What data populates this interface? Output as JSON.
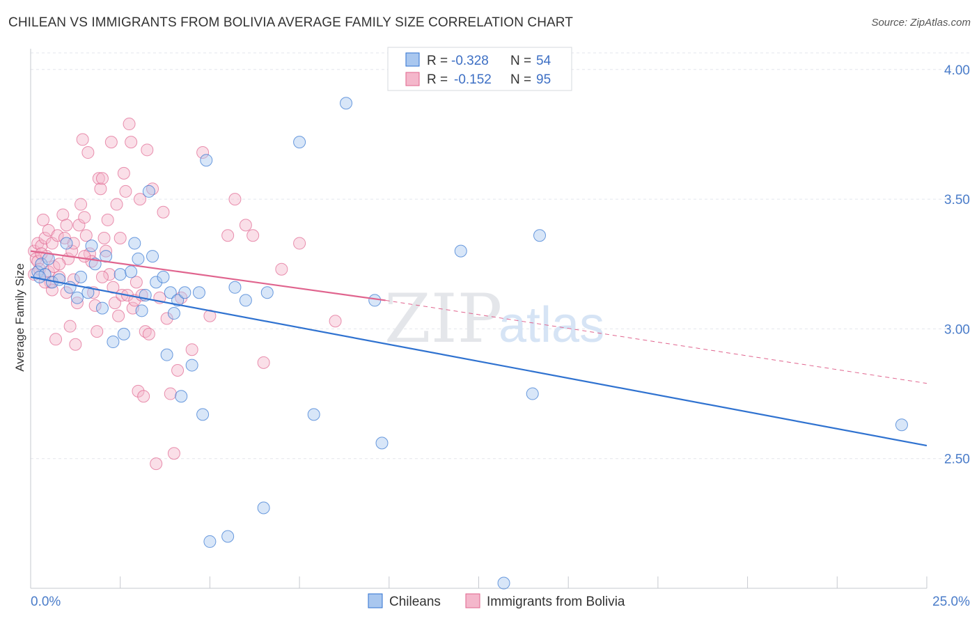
{
  "header": {
    "title": "CHILEAN VS IMMIGRANTS FROM BOLIVIA AVERAGE FAMILY SIZE CORRELATION CHART",
    "source": "Source: ZipAtlas.com"
  },
  "watermark": {
    "zip": "ZIP",
    "atlas": "atlas"
  },
  "colors": {
    "chileans_fill": "#a9c7ef",
    "chileans_line": "#2f72d0",
    "bolivia_fill": "#f4b7cb",
    "bolivia_line": "#e0648e",
    "grid": "#e3e6ec",
    "tick_label": "#4a7cc9"
  },
  "stats_legend": {
    "r_label": "R =",
    "n_label": "N =",
    "rows": [
      {
        "r": "-0.328",
        "n": "54"
      },
      {
        "r": "-0.152",
        "n": "95"
      }
    ]
  },
  "chart_data": {
    "type": "scatter",
    "title": "CHILEAN VS IMMIGRANTS FROM BOLIVIA AVERAGE FAMILY SIZE CORRELATION CHART",
    "xlabel": "",
    "ylabel": "Average Family Size",
    "xlim": [
      0,
      25
    ],
    "ylim": [
      2.0,
      4.08
    ],
    "x_tick_labels": [
      "0.0%",
      "25.0%"
    ],
    "y_ticks": [
      2.5,
      3.0,
      3.5,
      4.0
    ],
    "y_tick_labels": [
      "2.50",
      "3.00",
      "3.50",
      "4.00"
    ],
    "grid": true,
    "legend_position": "bottom-center",
    "series": [
      {
        "name": "Chileans",
        "trend": {
          "x": [
            0,
            25
          ],
          "y": [
            3.2,
            2.55
          ],
          "style": "solid"
        },
        "points": [
          [
            0.2,
            3.22
          ],
          [
            0.3,
            3.25
          ],
          [
            0.4,
            3.21
          ],
          [
            0.5,
            3.27
          ],
          [
            0.6,
            3.18
          ],
          [
            0.8,
            3.19
          ],
          [
            1.0,
            3.33
          ],
          [
            1.1,
            3.16
          ],
          [
            1.3,
            3.12
          ],
          [
            1.4,
            3.2
          ],
          [
            1.6,
            3.14
          ],
          [
            1.7,
            3.32
          ],
          [
            1.8,
            3.25
          ],
          [
            2.0,
            3.08
          ],
          [
            2.1,
            3.28
          ],
          [
            2.3,
            2.95
          ],
          [
            2.5,
            3.21
          ],
          [
            2.6,
            2.98
          ],
          [
            2.8,
            3.22
          ],
          [
            2.9,
            3.33
          ],
          [
            3.0,
            3.27
          ],
          [
            3.1,
            3.07
          ],
          [
            3.2,
            3.13
          ],
          [
            3.3,
            3.53
          ],
          [
            3.4,
            3.28
          ],
          [
            3.5,
            3.18
          ],
          [
            3.7,
            3.2
          ],
          [
            3.8,
            2.9
          ],
          [
            3.9,
            3.14
          ],
          [
            4.0,
            3.06
          ],
          [
            4.1,
            3.11
          ],
          [
            4.2,
            2.74
          ],
          [
            4.3,
            3.14
          ],
          [
            4.5,
            2.86
          ],
          [
            4.7,
            3.14
          ],
          [
            4.8,
            2.67
          ],
          [
            4.9,
            3.65
          ],
          [
            5.0,
            2.18
          ],
          [
            5.5,
            2.2
          ],
          [
            5.7,
            3.16
          ],
          [
            6.0,
            3.11
          ],
          [
            6.5,
            2.31
          ],
          [
            6.6,
            3.14
          ],
          [
            7.5,
            3.72
          ],
          [
            7.9,
            2.67
          ],
          [
            8.8,
            3.87
          ],
          [
            9.6,
            3.11
          ],
          [
            9.8,
            2.56
          ],
          [
            12.0,
            3.3
          ],
          [
            13.2,
            2.02
          ],
          [
            14.0,
            2.75
          ],
          [
            14.2,
            3.36
          ],
          [
            24.3,
            2.63
          ],
          [
            0.25,
            3.2
          ]
        ]
      },
      {
        "name": "Immigrants from Bolivia",
        "trend": {
          "x": [
            0,
            9.9
          ],
          "y": [
            3.3,
            3.11
          ],
          "style": "solid",
          "ext_x": [
            9.9,
            25
          ],
          "ext_y": [
            3.11,
            2.79
          ],
          "ext_style": "dashed"
        },
        "points": [
          [
            0.1,
            3.3
          ],
          [
            0.1,
            3.21
          ],
          [
            0.15,
            3.27
          ],
          [
            0.2,
            3.33
          ],
          [
            0.2,
            3.26
          ],
          [
            0.25,
            3.23
          ],
          [
            0.3,
            3.32
          ],
          [
            0.35,
            3.42
          ],
          [
            0.4,
            3.35
          ],
          [
            0.45,
            3.28
          ],
          [
            0.5,
            3.38
          ],
          [
            0.5,
            3.22
          ],
          [
            0.55,
            3.18
          ],
          [
            0.6,
            3.33
          ],
          [
            0.65,
            3.24
          ],
          [
            0.7,
            2.96
          ],
          [
            0.75,
            3.36
          ],
          [
            0.8,
            3.2
          ],
          [
            0.9,
            3.44
          ],
          [
            0.95,
            3.35
          ],
          [
            1.0,
            3.14
          ],
          [
            1.05,
            3.27
          ],
          [
            1.1,
            3.01
          ],
          [
            1.15,
            3.3
          ],
          [
            1.2,
            3.19
          ],
          [
            1.25,
            2.94
          ],
          [
            1.3,
            3.1
          ],
          [
            1.35,
            3.4
          ],
          [
            1.4,
            3.48
          ],
          [
            1.45,
            3.73
          ],
          [
            1.5,
            3.43
          ],
          [
            1.55,
            3.36
          ],
          [
            1.6,
            3.68
          ],
          [
            1.65,
            3.29
          ],
          [
            1.7,
            3.26
          ],
          [
            1.75,
            3.14
          ],
          [
            1.8,
            3.09
          ],
          [
            1.85,
            2.99
          ],
          [
            1.9,
            3.58
          ],
          [
            1.95,
            3.54
          ],
          [
            2.0,
            3.58
          ],
          [
            2.05,
            3.35
          ],
          [
            2.1,
            3.3
          ],
          [
            2.15,
            3.42
          ],
          [
            2.2,
            3.21
          ],
          [
            2.25,
            3.72
          ],
          [
            2.3,
            3.16
          ],
          [
            2.35,
            3.1
          ],
          [
            2.4,
            3.48
          ],
          [
            2.45,
            3.05
          ],
          [
            2.5,
            3.35
          ],
          [
            2.55,
            3.13
          ],
          [
            2.6,
            3.6
          ],
          [
            2.65,
            3.53
          ],
          [
            2.7,
            3.13
          ],
          [
            2.75,
            3.79
          ],
          [
            2.8,
            3.72
          ],
          [
            2.85,
            3.08
          ],
          [
            2.9,
            3.11
          ],
          [
            2.95,
            3.18
          ],
          [
            3.0,
            2.76
          ],
          [
            3.05,
            3.5
          ],
          [
            3.1,
            3.13
          ],
          [
            3.15,
            2.74
          ],
          [
            3.2,
            2.99
          ],
          [
            3.25,
            3.69
          ],
          [
            3.3,
            2.98
          ],
          [
            3.4,
            3.54
          ],
          [
            3.5,
            2.48
          ],
          [
            3.6,
            3.12
          ],
          [
            3.7,
            3.45
          ],
          [
            3.8,
            3.04
          ],
          [
            3.9,
            2.75
          ],
          [
            4.0,
            2.52
          ],
          [
            4.1,
            2.84
          ],
          [
            4.2,
            3.12
          ],
          [
            4.5,
            2.92
          ],
          [
            4.8,
            3.68
          ],
          [
            5.0,
            3.05
          ],
          [
            5.5,
            3.36
          ],
          [
            5.7,
            3.5
          ],
          [
            6.0,
            3.4
          ],
          [
            6.2,
            3.36
          ],
          [
            6.5,
            2.87
          ],
          [
            7.0,
            3.23
          ],
          [
            7.5,
            3.33
          ],
          [
            8.5,
            3.03
          ],
          [
            0.3,
            3.29
          ],
          [
            0.6,
            3.15
          ],
          [
            1.0,
            3.4
          ],
          [
            1.5,
            3.28
          ],
          [
            2.0,
            3.2
          ],
          [
            0.4,
            3.18
          ],
          [
            0.8,
            3.25
          ],
          [
            1.2,
            3.33
          ]
        ]
      }
    ]
  },
  "bottom_legend": [
    {
      "label": "Chileans"
    },
    {
      "label": "Immigrants from Bolivia"
    }
  ]
}
